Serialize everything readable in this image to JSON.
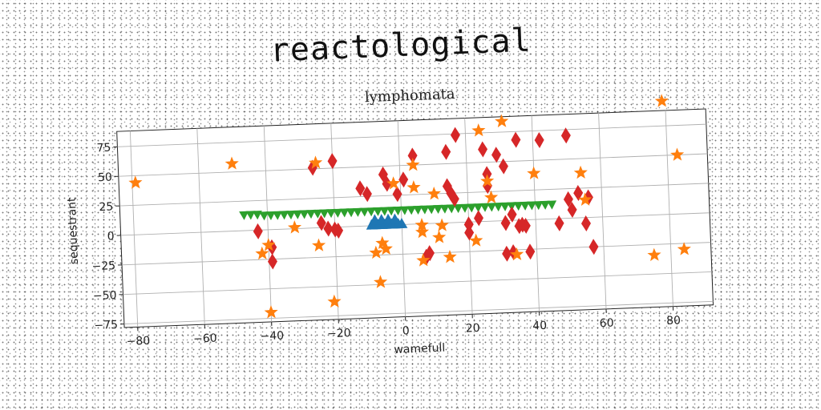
{
  "page_title": "reactological",
  "chart_data": {
    "type": "scatter",
    "title": "lymphomata",
    "xlabel": "wamefull",
    "ylabel": "sequestrant",
    "xlim": [
      -84,
      92
    ],
    "ylim": [
      -78,
      88
    ],
    "xticks": [
      -80,
      -60,
      -40,
      -20,
      0,
      20,
      40,
      60,
      80
    ],
    "yticks": [
      -75,
      -50,
      -25,
      0,
      25,
      50,
      75
    ],
    "xtick_labels": [
      "−80",
      "−60",
      "−40",
      "−20",
      "0",
      "20",
      "40",
      "60",
      "80"
    ],
    "ytick_labels": [
      "−75",
      "−50",
      "−25",
      "0",
      "25",
      "50",
      "75"
    ],
    "grid": true,
    "series": [
      {
        "marker": "triangle-down",
        "color": "#2ca02c",
        "points": [
          [
            -47,
            13
          ],
          [
            -45,
            13
          ],
          [
            -43,
            13
          ],
          [
            -41,
            12
          ],
          [
            -39,
            12
          ],
          [
            -37,
            12
          ],
          [
            -35,
            12
          ],
          [
            -33,
            12
          ],
          [
            -31,
            12
          ],
          [
            -29,
            12
          ],
          [
            -27,
            12
          ],
          [
            -25,
            12
          ],
          [
            -23,
            12
          ],
          [
            -21,
            12
          ],
          [
            -19,
            12
          ],
          [
            -17,
            12
          ],
          [
            -15,
            12
          ],
          [
            -13,
            12
          ],
          [
            -11,
            12
          ],
          [
            -9,
            12
          ],
          [
            -7,
            12
          ],
          [
            -5,
            12
          ],
          [
            -3,
            12
          ],
          [
            -1,
            12
          ],
          [
            1,
            12
          ],
          [
            3,
            12
          ],
          [
            5,
            12
          ],
          [
            7,
            12
          ],
          [
            9,
            12
          ],
          [
            11,
            12
          ],
          [
            13,
            12
          ],
          [
            15,
            12
          ],
          [
            17,
            12
          ],
          [
            19,
            12
          ],
          [
            21,
            12
          ],
          [
            23,
            12
          ],
          [
            25,
            12
          ],
          [
            27,
            12
          ],
          [
            29,
            12
          ],
          [
            31,
            12
          ],
          [
            33,
            12
          ],
          [
            35,
            12
          ],
          [
            37,
            12
          ],
          [
            39,
            12
          ],
          [
            41,
            12
          ],
          [
            43,
            12
          ],
          [
            45,
            12
          ]
        ]
      },
      {
        "marker": "triangle-up",
        "color": "#1f77b4",
        "points": [
          [
            -9,
            1
          ],
          [
            -8,
            1
          ],
          [
            -7,
            1
          ],
          [
            -6,
            1
          ],
          [
            -5,
            1
          ],
          [
            -4,
            1
          ],
          [
            -3,
            1
          ],
          [
            -2,
            1
          ],
          [
            -1,
            1
          ],
          [
            0,
            1
          ],
          [
            -8,
            5
          ],
          [
            -6,
            5
          ],
          [
            -4,
            5
          ],
          [
            -2,
            5
          ]
        ]
      },
      {
        "marker": "diamond",
        "color": "#d62728",
        "points": [
          [
            -43,
            -1
          ],
          [
            -39,
            -15
          ],
          [
            -39,
            -27
          ],
          [
            -26,
            51
          ],
          [
            -24,
            4
          ],
          [
            -22,
            -1
          ],
          [
            -20,
            56
          ],
          [
            -19,
            -3
          ],
          [
            -20,
            -2
          ],
          [
            -12,
            32
          ],
          [
            -10,
            27
          ],
          [
            -5,
            43
          ],
          [
            -4,
            35
          ],
          [
            -1,
            26
          ],
          [
            1,
            38
          ],
          [
            4,
            58
          ],
          [
            7,
            -28
          ],
          [
            8,
            -25
          ],
          [
            14,
            60
          ],
          [
            14,
            31
          ],
          [
            15,
            25
          ],
          [
            16,
            20
          ],
          [
            17,
            74
          ],
          [
            20,
            -2
          ],
          [
            20,
            -9
          ],
          [
            23,
            3
          ],
          [
            25,
            61
          ],
          [
            26,
            40
          ],
          [
            26,
            30
          ],
          [
            29,
            56
          ],
          [
            31,
            46
          ],
          [
            31,
            -2
          ],
          [
            33,
            5
          ],
          [
            35,
            -5
          ],
          [
            38,
            -27
          ],
          [
            35,
            68
          ],
          [
            36,
            -4
          ],
          [
            37,
            -5
          ],
          [
            42,
            67
          ],
          [
            47,
            -4
          ],
          [
            50,
            16
          ],
          [
            51,
            7
          ],
          [
            50,
            70
          ],
          [
            53,
            21
          ],
          [
            56,
            17
          ],
          [
            55,
            -5
          ],
          [
            57,
            -25
          ],
          [
            31,
            -28
          ],
          [
            33,
            -27
          ]
        ]
      },
      {
        "marker": "star",
        "color": "#ff7f0e",
        "points": [
          [
            -79,
            44
          ],
          [
            -50,
            57
          ],
          [
            -42,
            -20
          ],
          [
            -40,
            -13
          ],
          [
            -40,
            -70
          ],
          [
            -32,
            1
          ],
          [
            -25,
            55
          ],
          [
            -25,
            -15
          ],
          [
            -21,
            -63
          ],
          [
            -8,
            -23
          ],
          [
            -7,
            -48
          ],
          [
            -6,
            -15
          ],
          [
            -5,
            -20
          ],
          [
            -2,
            35
          ],
          [
            4,
            31
          ],
          [
            4,
            50
          ],
          [
            6,
            -7
          ],
          [
            6,
            -31
          ],
          [
            6,
            -1
          ],
          [
            10,
            25
          ],
          [
            11,
            -12
          ],
          [
            12,
            -2
          ],
          [
            14,
            -29
          ],
          [
            22,
            -16
          ],
          [
            24,
            77
          ],
          [
            26,
            34
          ],
          [
            27,
            20
          ],
          [
            31,
            84
          ],
          [
            34,
            -29
          ],
          [
            40,
            39
          ],
          [
            54,
            38
          ],
          [
            55,
            15
          ],
          [
            75,
            -34
          ],
          [
            79,
            96
          ],
          [
            83,
            50
          ],
          [
            84,
            -30
          ]
        ]
      }
    ]
  }
}
